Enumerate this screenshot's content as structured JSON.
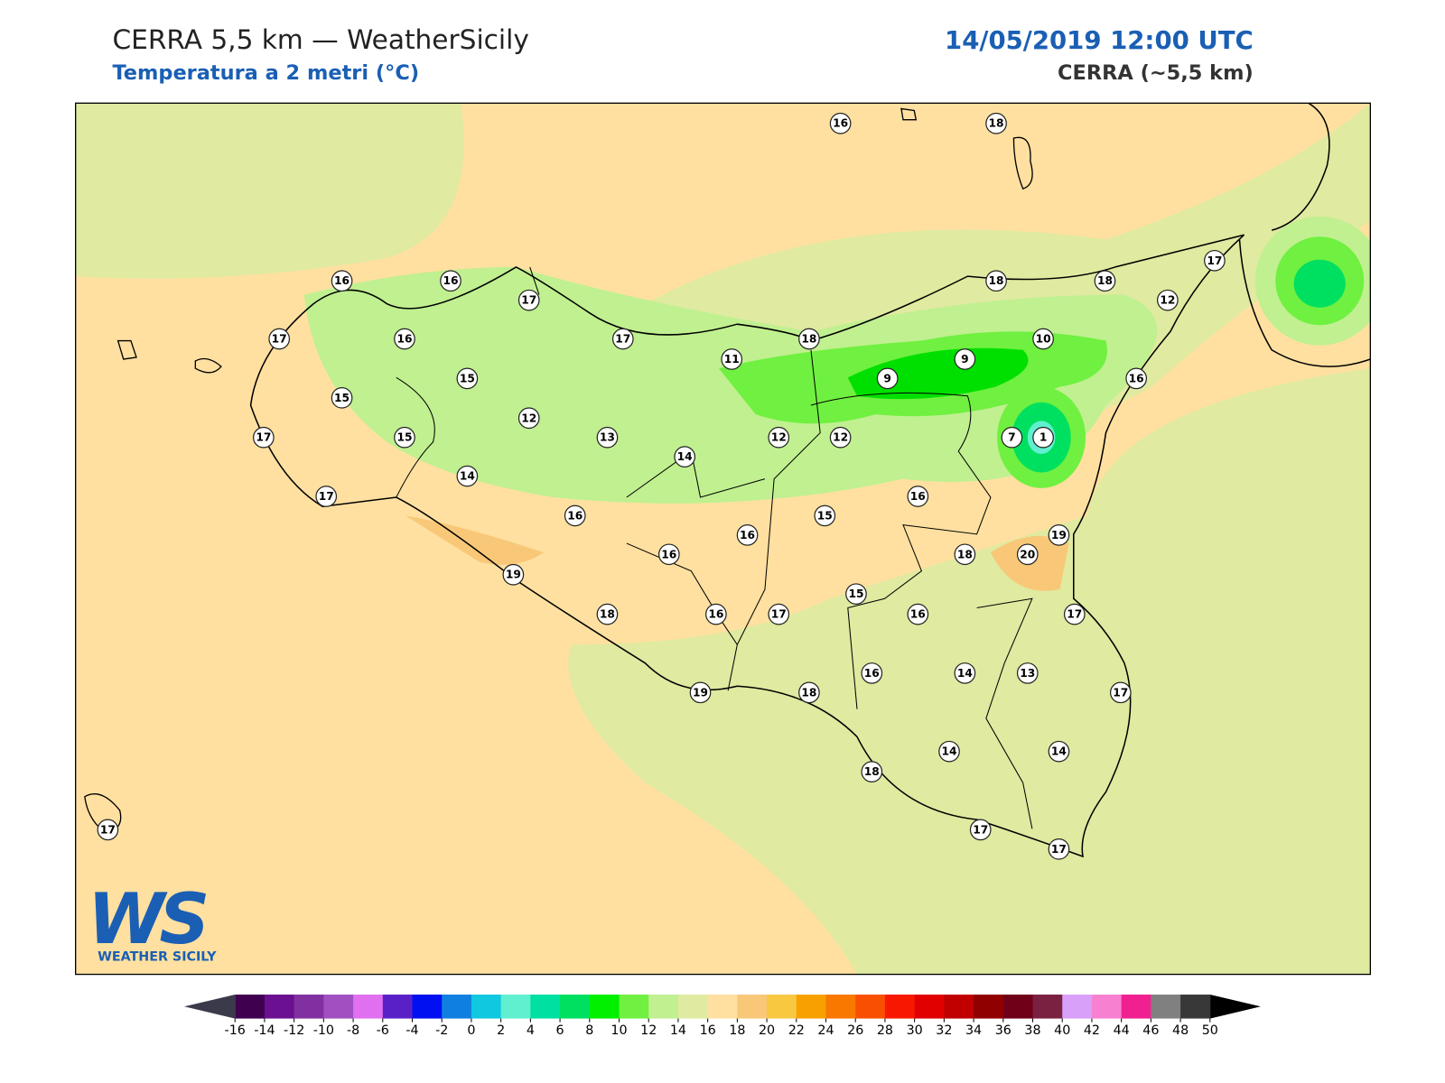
{
  "header": {
    "title": "CERRA 5,5 km — WeatherSicily",
    "subtitle": "Temperatura a 2 metri (°C)",
    "datetime": "14/05/2019 12:00 UTC",
    "model": "CERRA (~5,5 km)"
  },
  "logo": {
    "mark": "WS",
    "name": "WEATHER SICILY"
  },
  "stations": {
    "values": [
      16,
      18,
      16,
      16,
      17,
      17,
      16,
      17,
      18,
      18,
      18,
      17,
      12,
      10,
      9,
      9,
      11,
      15,
      15,
      16,
      12,
      13,
      12,
      12,
      7,
      1,
      17,
      15,
      14,
      14,
      17,
      16,
      16,
      15,
      16,
      19,
      16,
      18,
      20,
      19,
      15,
      18,
      16,
      17,
      16,
      17,
      16,
      14,
      13,
      17,
      19,
      18,
      14,
      14,
      18,
      17,
      17,
      17
    ]
  },
  "colorbar": {
    "ticks": [
      -16,
      -14,
      -12,
      -10,
      -8,
      -6,
      -4,
      -2,
      0,
      2,
      4,
      6,
      8,
      10,
      12,
      14,
      16,
      18,
      20,
      22,
      24,
      26,
      28,
      30,
      32,
      34,
      36,
      38,
      40,
      42,
      44,
      46,
      48,
      50
    ],
    "colors": [
      "#3f0050",
      "#6a1090",
      "#8030a0",
      "#a050c0",
      "#e070f0",
      "#5a20c8",
      "#0010f0",
      "#1080e0",
      "#10c8e0",
      "#60f0d0",
      "#00e0a0",
      "#00e060",
      "#00f000",
      "#70f040",
      "#c0f090",
      "#e0eaa0",
      "#ffe0a0",
      "#f8c878",
      "#f8c840",
      "#f8a000",
      "#f87800",
      "#f85000",
      "#f81800",
      "#e00000",
      "#c00000",
      "#900000",
      "#700018",
      "#7a2040",
      "#d8a0f8",
      "#f880d0",
      "#f02090",
      "#808080",
      "#383838"
    ],
    "under_color": "#3a3a4a",
    "over_color": "#000000"
  }
}
